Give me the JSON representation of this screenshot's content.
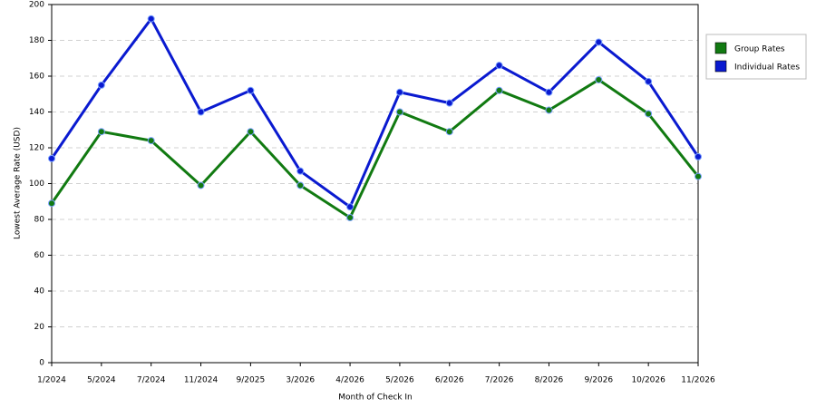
{
  "chart_data": {
    "type": "line",
    "x_label": "Month of Check In",
    "y_label": "Lowest Average Rate (USD)",
    "categories": [
      "1/2024",
      "5/2024",
      "7/2024",
      "11/2024",
      "9/2025",
      "3/2026",
      "4/2026",
      "5/2026",
      "6/2026",
      "7/2026",
      "8/2026",
      "9/2026",
      "10/2026",
      "11/2026"
    ],
    "series": [
      {
        "name": "Group Rates",
        "color": "#117a11",
        "values": [
          89,
          129,
          124,
          99,
          129,
          99,
          81,
          140,
          129,
          152,
          141,
          158,
          139,
          104
        ]
      },
      {
        "name": "Individual Rates",
        "color": "#0a1ad0",
        "values": [
          114,
          155,
          192,
          140,
          152,
          107,
          87,
          151,
          145,
          166,
          151,
          179,
          157,
          115
        ]
      }
    ],
    "ylim": [
      0,
      200
    ],
    "yticks": [
      0,
      20,
      40,
      60,
      80,
      100,
      120,
      140,
      160,
      180,
      200
    ],
    "grid": true,
    "legend": "right"
  }
}
